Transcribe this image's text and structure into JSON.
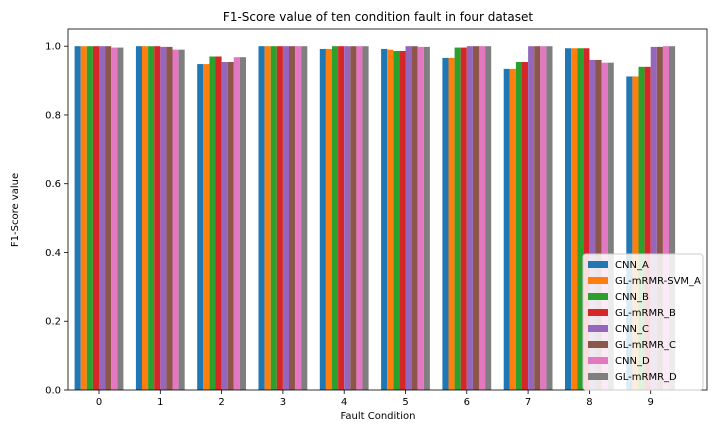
{
  "chart_data": {
    "type": "bar",
    "title": "F1-Score value of ten condition fault in four dataset",
    "xlabel": "Fault Condition",
    "ylabel": "F1-Score value",
    "ylim": [
      0,
      1.05
    ],
    "yticks": [
      "0.0",
      "0.2",
      "0.4",
      "0.6",
      "0.8",
      "1.0"
    ],
    "categories": [
      "0",
      "1",
      "2",
      "3",
      "4",
      "5",
      "6",
      "7",
      "8",
      "9"
    ],
    "legend_position": "lower-right",
    "grid": false,
    "series": [
      {
        "name": "CNN_A",
        "color": "#1f77b4",
        "values": [
          1.0,
          1.0,
          0.948,
          1.0,
          0.992,
          0.992,
          0.966,
          0.934,
          0.994,
          0.912
        ]
      },
      {
        "name": "GL-mRMR-SVM_A",
        "color": "#ff7f0e",
        "values": [
          1.0,
          1.0,
          0.948,
          1.0,
          0.992,
          0.99,
          0.966,
          0.934,
          0.994,
          0.912
        ]
      },
      {
        "name": "CNN_B",
        "color": "#2ca02c",
        "values": [
          1.0,
          1.0,
          0.97,
          1.0,
          1.0,
          0.986,
          0.996,
          0.954,
          0.994,
          0.94
        ]
      },
      {
        "name": "GL-mRMR_B",
        "color": "#d62728",
        "values": [
          1.0,
          1.0,
          0.97,
          1.0,
          1.0,
          0.986,
          0.996,
          0.954,
          0.994,
          0.94
        ]
      },
      {
        "name": "CNN_C",
        "color": "#9467bd",
        "values": [
          1.0,
          0.998,
          0.954,
          1.0,
          1.0,
          1.0,
          1.0,
          1.0,
          0.96,
          0.998
        ]
      },
      {
        "name": "GL-mRMR_C",
        "color": "#8c564b",
        "values": [
          1.0,
          0.998,
          0.954,
          1.0,
          1.0,
          1.0,
          1.0,
          1.0,
          0.96,
          0.998
        ]
      },
      {
        "name": "CNN_D",
        "color": "#e377c2",
        "values": [
          0.996,
          0.99,
          0.968,
          1.0,
          1.0,
          0.998,
          1.0,
          1.0,
          0.952,
          1.0
        ]
      },
      {
        "name": "GL-mRMR_D",
        "color": "#7f7f7f",
        "values": [
          0.996,
          0.99,
          0.968,
          1.0,
          1.0,
          0.998,
          1.0,
          1.0,
          0.952,
          1.0
        ]
      }
    ]
  }
}
